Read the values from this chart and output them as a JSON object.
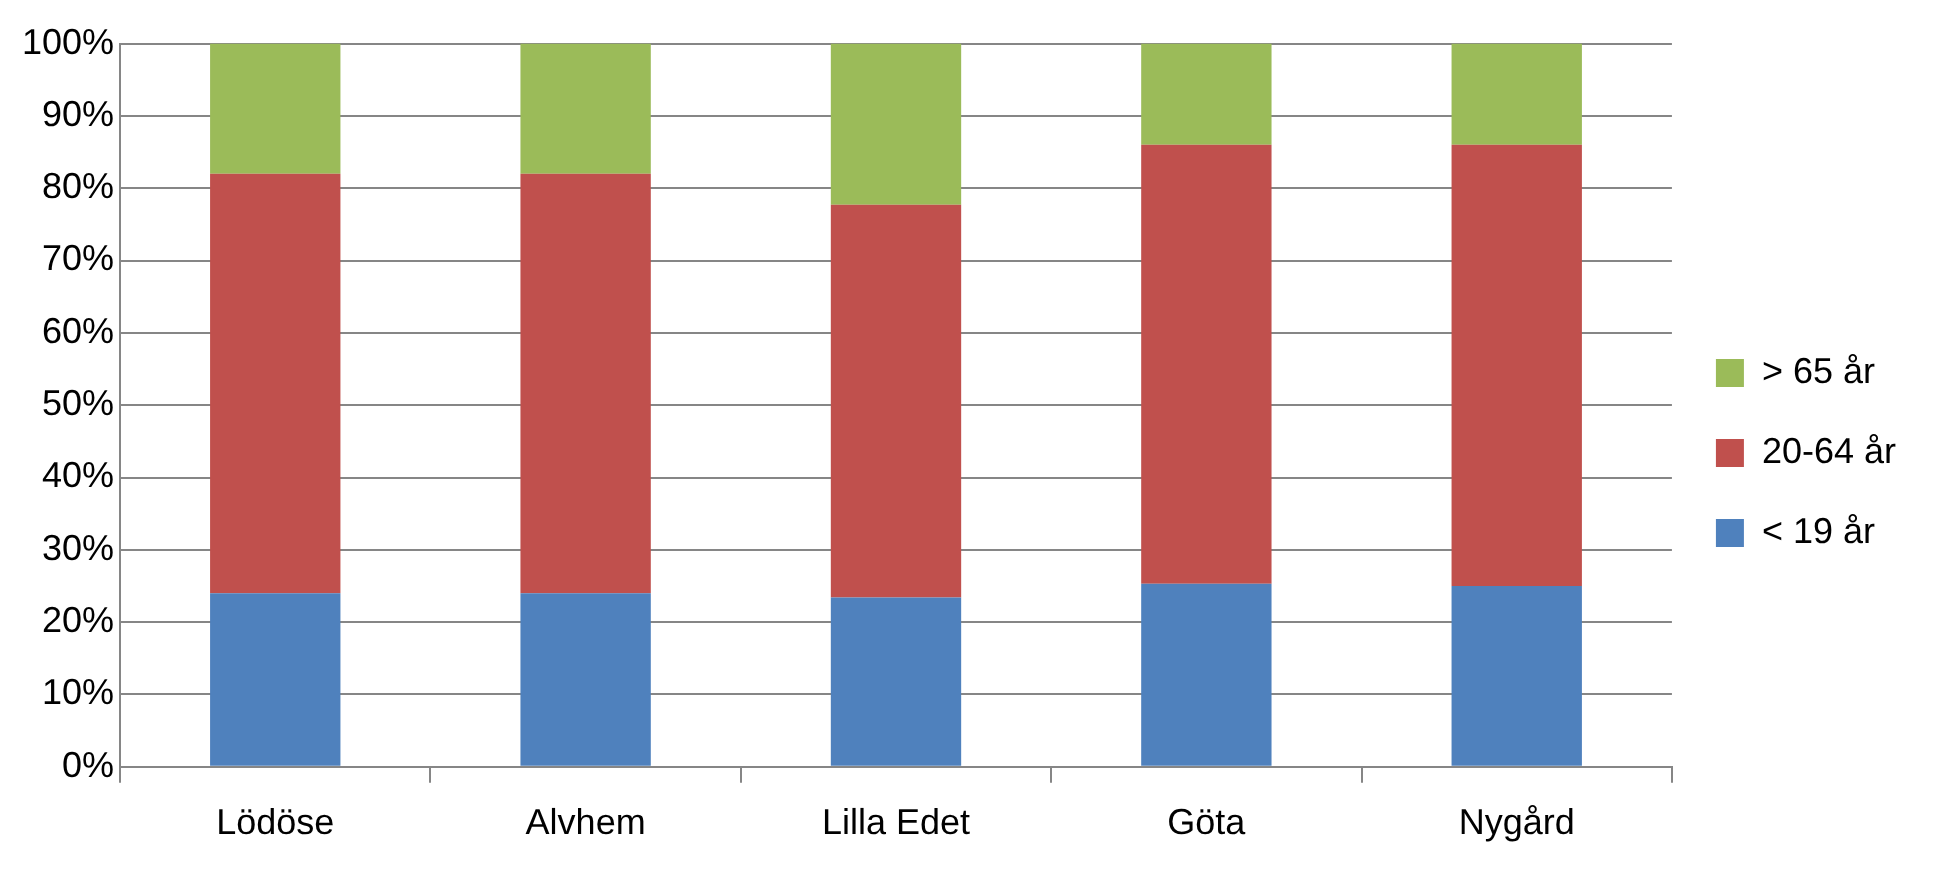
{
  "chart_data": {
    "type": "bar",
    "stacked": true,
    "categories": [
      "Lödöse",
      "Alvhem",
      "Lilla Edet",
      "Göta",
      "Nygård"
    ],
    "series": [
      {
        "name": "< 19 år",
        "color": "#4f81bd",
        "values": [
          24,
          24,
          23.4,
          25.3,
          25
        ]
      },
      {
        "name": "20-64 år",
        "color": "#c0504d",
        "values": [
          58,
          58,
          54.3,
          60.7,
          61
        ]
      },
      {
        "name": "> 65 år",
        "color": "#9bbb59",
        "values": [
          18,
          18,
          22.3,
          14,
          14
        ]
      }
    ],
    "ylim": [
      0,
      100
    ],
    "yticks": [
      {
        "value": 0,
        "label": "0%"
      },
      {
        "value": 10,
        "label": "10%"
      },
      {
        "value": 20,
        "label": "20%"
      },
      {
        "value": 30,
        "label": "30%"
      },
      {
        "value": 40,
        "label": "40%"
      },
      {
        "value": 50,
        "label": "50%"
      },
      {
        "value": 60,
        "label": "60%"
      },
      {
        "value": 70,
        "label": "70%"
      },
      {
        "value": 80,
        "label": "80%"
      },
      {
        "value": 90,
        "label": "90%"
      },
      {
        "value": 100,
        "label": "100%"
      }
    ],
    "grid": "y",
    "legend": "right"
  }
}
